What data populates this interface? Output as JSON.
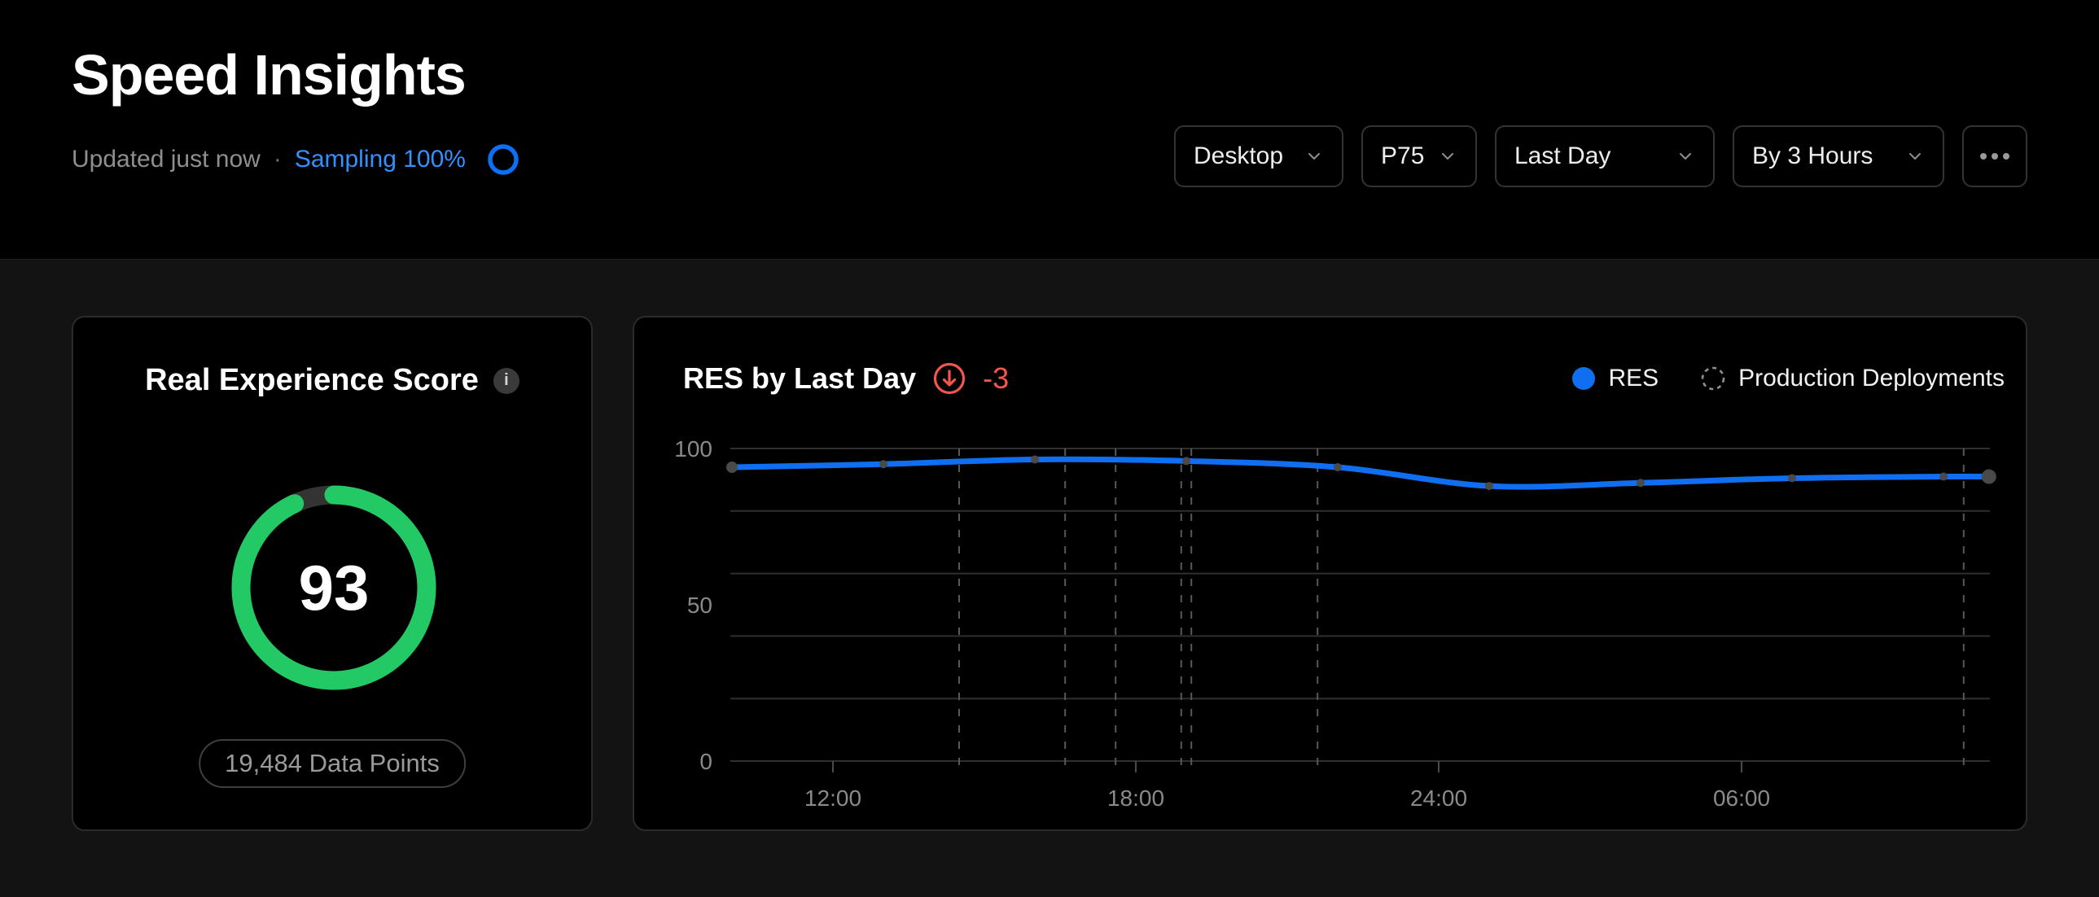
{
  "header": {
    "title": "Speed Insights",
    "updated_text": "Updated just now",
    "separator": "·",
    "sampling_text": "Sampling 100%",
    "controls": [
      {
        "id": "device",
        "value": "Desktop"
      },
      {
        "id": "percentile",
        "value": "P75"
      },
      {
        "id": "time-range",
        "value": "Last Day"
      },
      {
        "id": "interval",
        "value": "By 3 Hours"
      }
    ]
  },
  "score_card": {
    "title": "Real Experience Score",
    "info_icon": "i",
    "score": "93",
    "score_value": 93,
    "score_max": 100,
    "badge": "19,484 Data Points",
    "ring_color": "#23c965",
    "track_color": "#333333"
  },
  "chart_card": {
    "title": "RES by Last Day",
    "delta": "-3",
    "delta_color": "#f4564c",
    "legend": [
      {
        "label": "RES",
        "marker": "filled-dot",
        "color": "#0f6ff0"
      },
      {
        "label": "Production Deployments",
        "marker": "dashed-circle",
        "color": "#8f8f8f"
      }
    ]
  },
  "chart_data": {
    "type": "line",
    "title": "RES by Last Day",
    "delta": -3,
    "x_unit": "time-of-day",
    "xlim_hours": [
      10,
      34.9
    ],
    "ylim": [
      0,
      100
    ],
    "grid": true,
    "legend_position": "top-right",
    "gridline_values": [
      0,
      20,
      40,
      60,
      80,
      100
    ],
    "y_tick_labels": [
      {
        "value": 100,
        "label": "100"
      },
      {
        "value": 50,
        "label": "50"
      },
      {
        "value": 0,
        "label": "0"
      }
    ],
    "x_ticks": [
      {
        "hour": 12,
        "label": "12:00"
      },
      {
        "hour": 18,
        "label": "18:00"
      },
      {
        "hour": 24,
        "label": "24:00"
      },
      {
        "hour": 30,
        "label": "06:00"
      }
    ],
    "series": [
      {
        "name": "RES",
        "color": "#0f6ff0",
        "points": [
          {
            "hour": 10,
            "time": "10:00",
            "value": 94
          },
          {
            "hour": 13,
            "time": "13:00",
            "value": 95
          },
          {
            "hour": 16,
            "time": "16:00",
            "value": 96.5
          },
          {
            "hour": 19,
            "time": "19:00",
            "value": 96
          },
          {
            "hour": 22,
            "time": "22:00",
            "value": 94
          },
          {
            "hour": 25,
            "time": "01:00",
            "value": 88
          },
          {
            "hour": 28,
            "time": "04:00",
            "value": 89
          },
          {
            "hour": 31,
            "time": "07:00",
            "value": 90.5
          },
          {
            "hour": 34,
            "time": "10:00",
            "value": 91
          },
          {
            "hour": 34.9,
            "time": "10:55",
            "value": 91
          }
        ]
      }
    ],
    "deployments": {
      "name": "Production Deployments",
      "hours": [
        14.5,
        16.6,
        17.6,
        18.9,
        19.1,
        21.6,
        34.4
      ]
    }
  }
}
